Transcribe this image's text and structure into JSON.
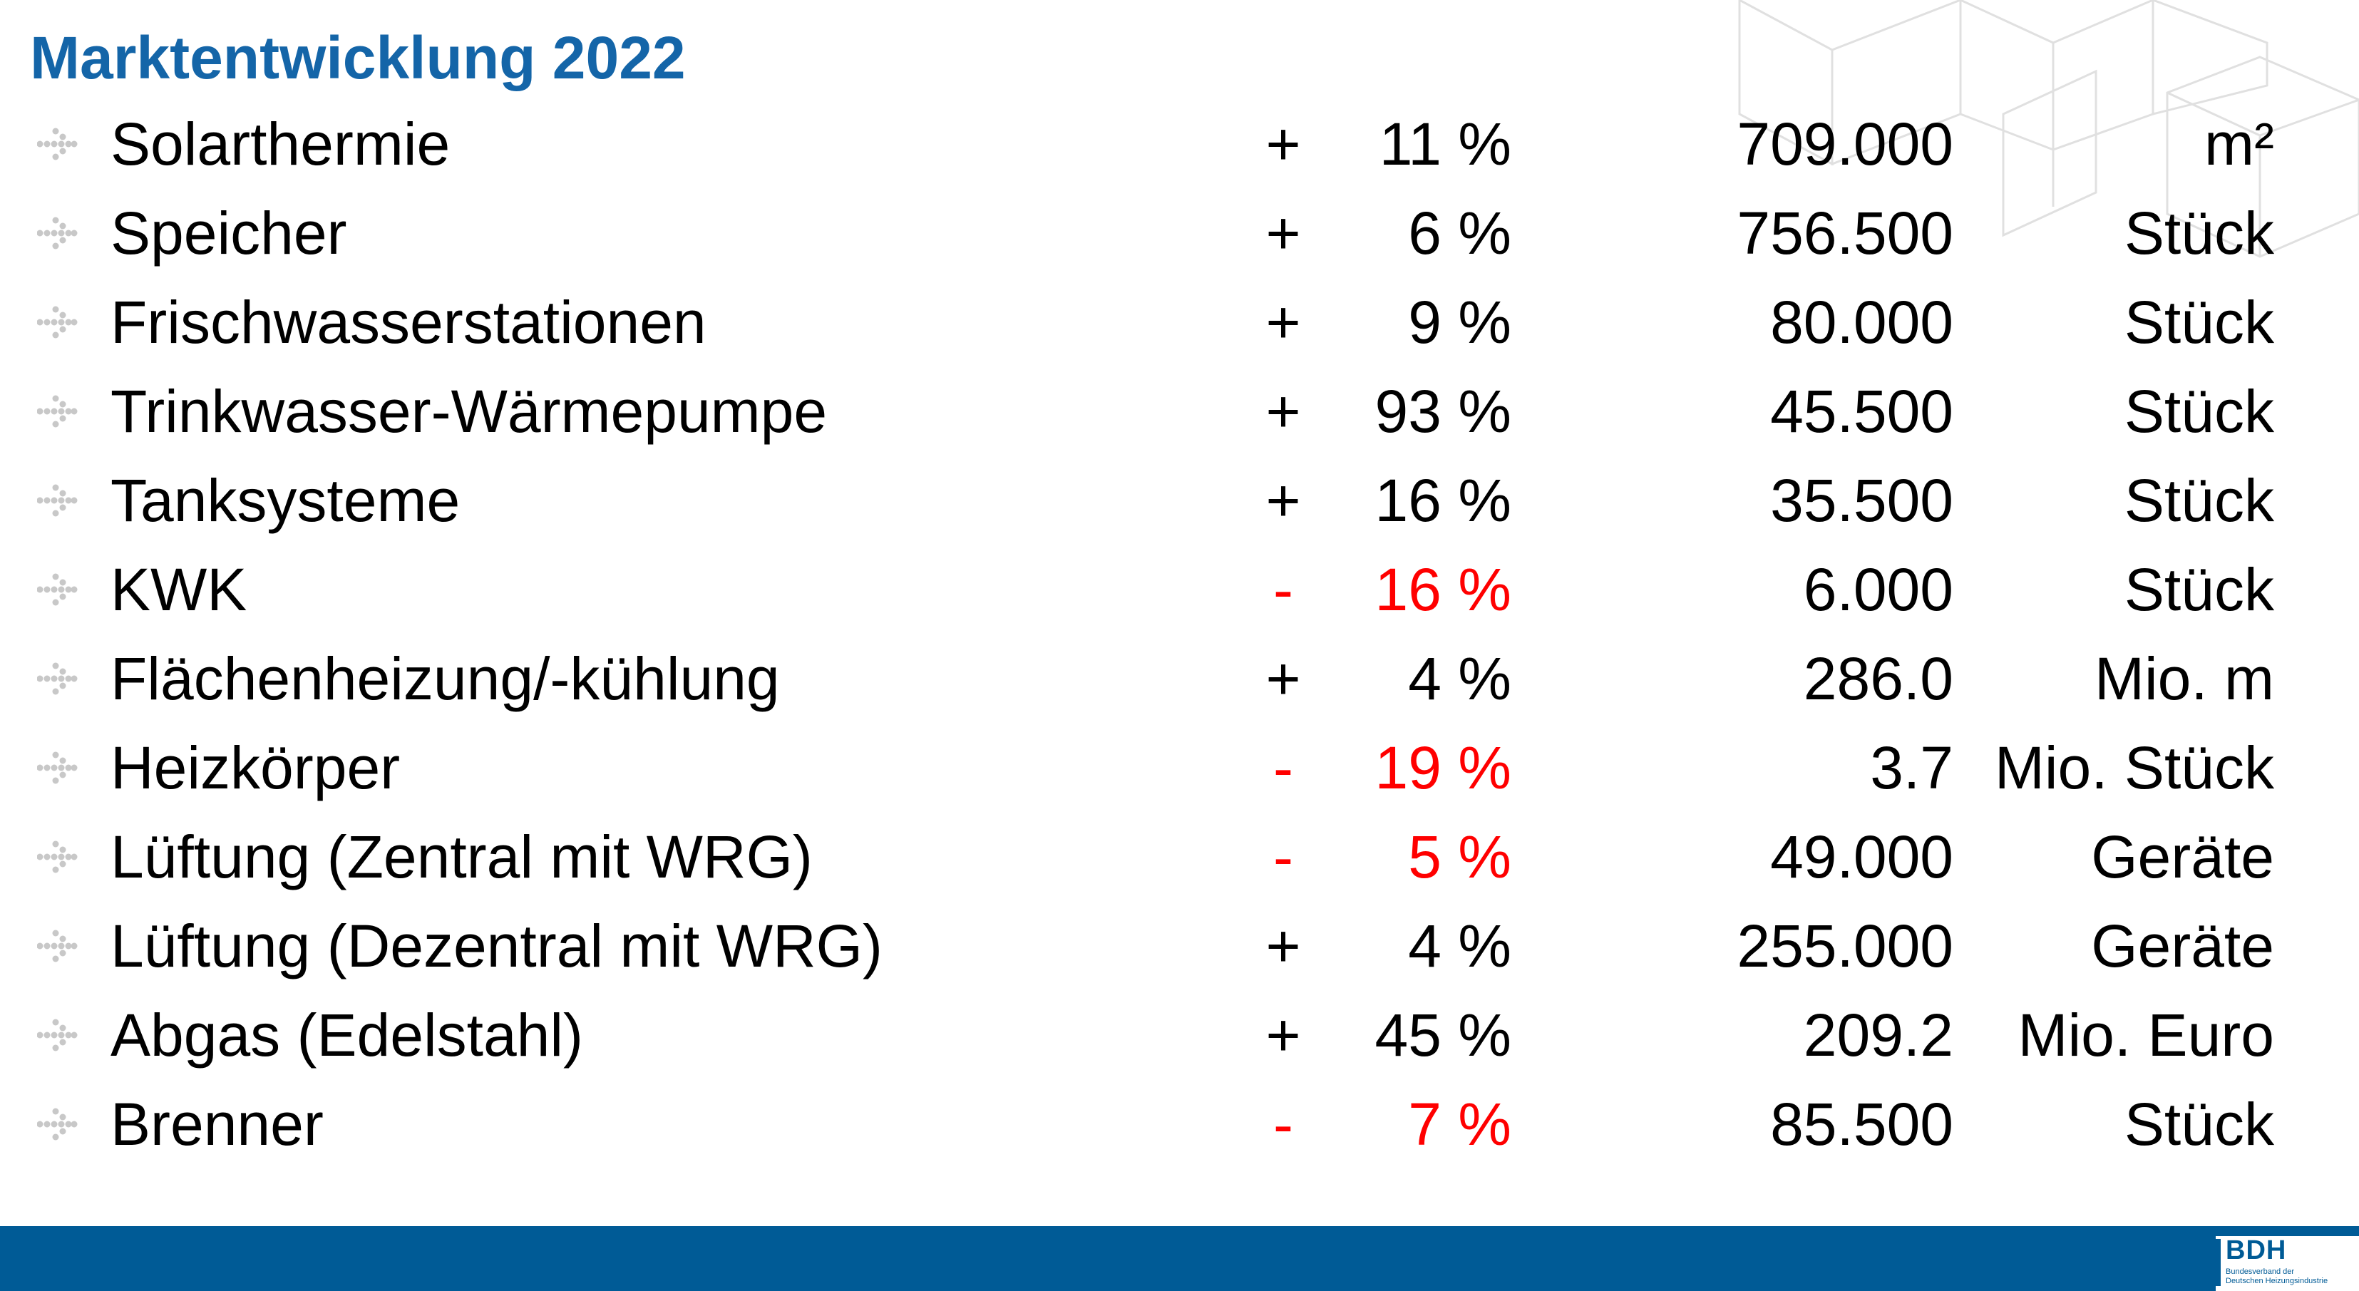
{
  "title": "Marktentwicklung 2022",
  "accent_color": "#1465a8",
  "negative_color": "#ff0000",
  "footer_color": "#005b96",
  "bullet_icon": "dotted-arrow-icon",
  "rows": [
    {
      "label": "Solarthermie",
      "sign": "+",
      "percent": "11 %",
      "value": "709.000",
      "unit": "m²",
      "negative": false
    },
    {
      "label": "Speicher",
      "sign": "+",
      "percent": "6 %",
      "value": "756.500",
      "unit": "Stück",
      "negative": false
    },
    {
      "label": "Frischwasserstationen",
      "sign": "+",
      "percent": "9 %",
      "value": "80.000",
      "unit": "Stück",
      "negative": false
    },
    {
      "label": "Trinkwasser-Wärmepumpe",
      "sign": "+",
      "percent": "93 %",
      "value": "45.500",
      "unit": "Stück",
      "negative": false
    },
    {
      "label": "Tanksysteme",
      "sign": "+",
      "percent": "16 %",
      "value": "35.500",
      "unit": "Stück",
      "negative": false
    },
    {
      "label": "KWK",
      "sign": "-",
      "percent": "16 %",
      "value": "6.000",
      "unit": "Stück",
      "negative": true
    },
    {
      "label": "Flächenheizung/-kühlung",
      "sign": "+",
      "percent": "4 %",
      "value": "286.0",
      "unit": "Mio. m",
      "negative": false
    },
    {
      "label": "Heizkörper",
      "sign": "-",
      "percent": "19 %",
      "value": "3.7",
      "unit": "Mio. Stück",
      "negative": true
    },
    {
      "label": "Lüftung (Zentral mit WRG)",
      "sign": "-",
      "percent": "5 %",
      "value": "49.000",
      "unit": "Geräte",
      "negative": true
    },
    {
      "label": "Lüftung (Dezentral mit WRG)",
      "sign": "+",
      "percent": "4 %",
      "value": "255.000",
      "unit": "Geräte",
      "negative": false
    },
    {
      "label": "Abgas (Edelstahl)",
      "sign": "+",
      "percent": "45 %",
      "value": "209.2",
      "unit": "Mio. Euro",
      "negative": false
    },
    {
      "label": "Brenner",
      "sign": "-",
      "percent": "7 %",
      "value": "85.500",
      "unit": "Stück",
      "negative": true
    }
  ],
  "logo": {
    "text": "BDH",
    "subtitle_line1": "Bundesverband der",
    "subtitle_line2": "Deutschen Heizungsindustrie"
  }
}
